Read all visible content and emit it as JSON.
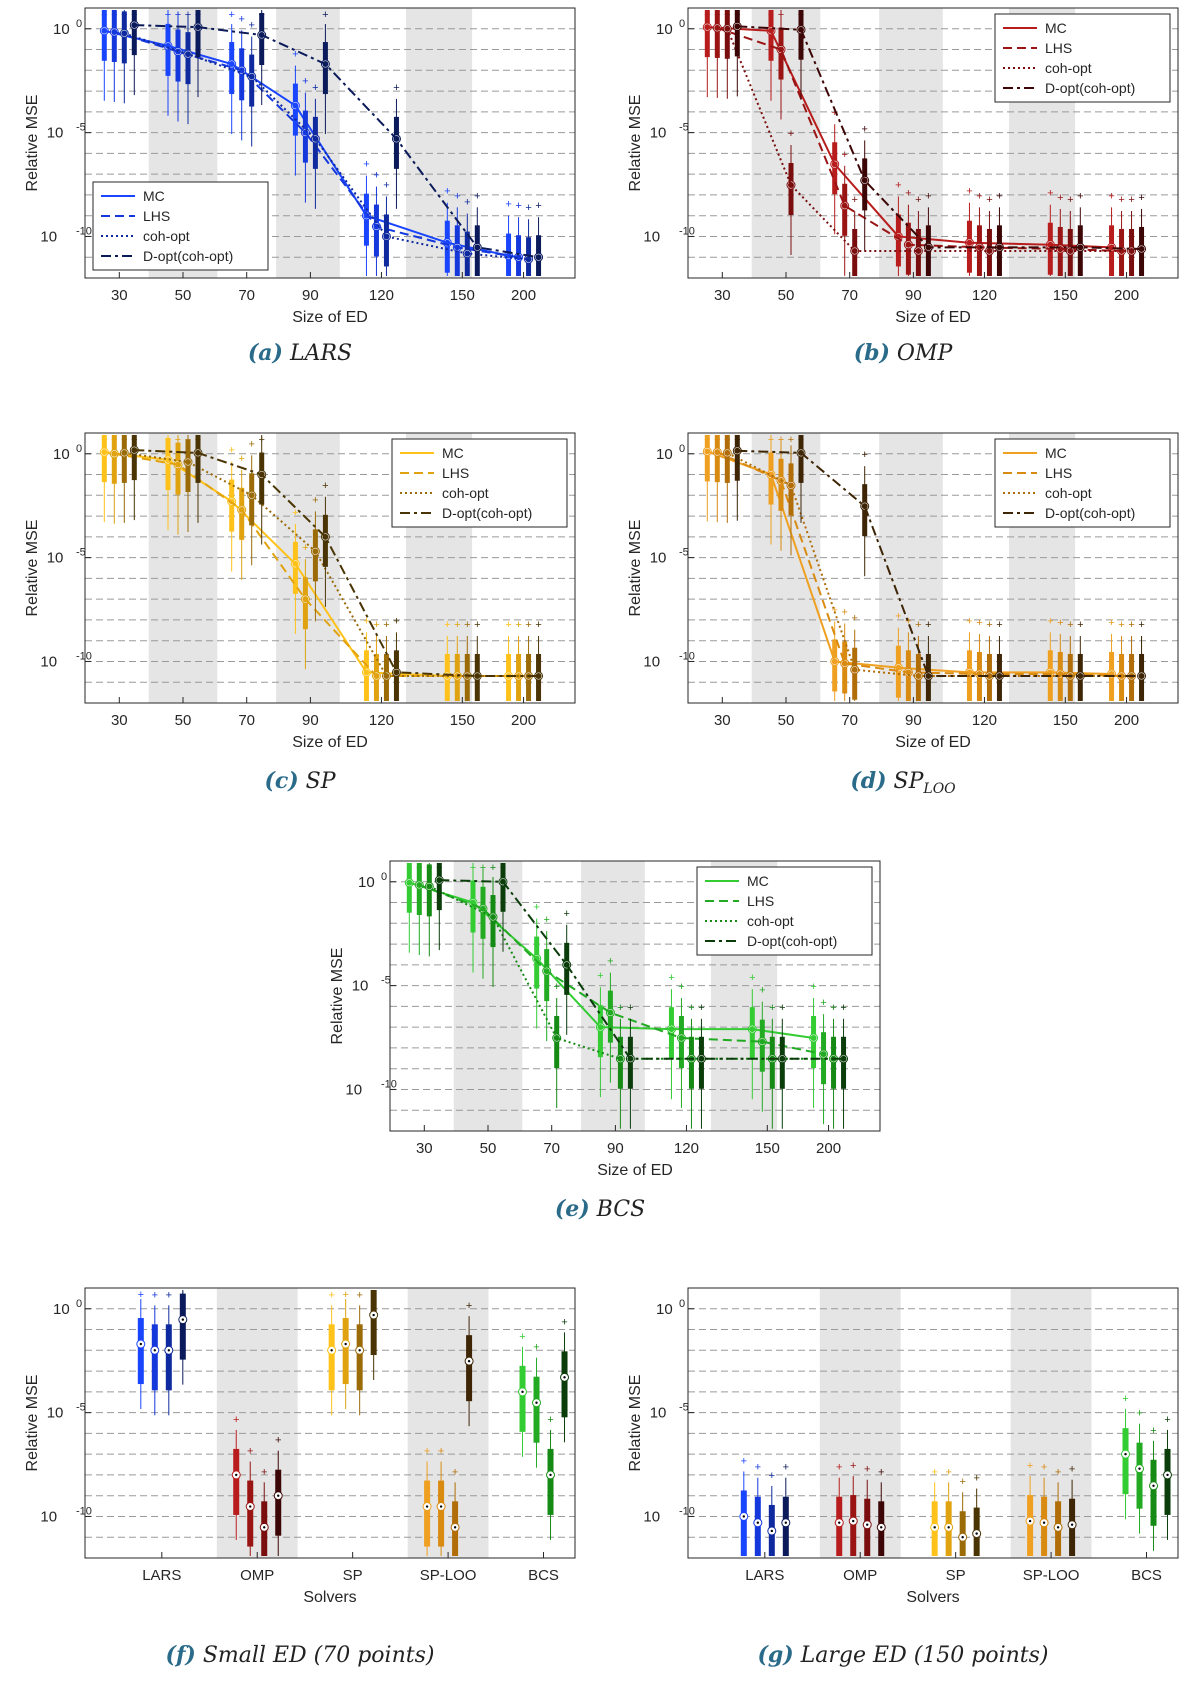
{
  "colors": {
    "LARS": [
      "#1a45ff",
      "#1538dd",
      "#0f2a9e",
      "#0b1a5a"
    ],
    "OMP": [
      "#b81c1c",
      "#9a1414",
      "#7a0e0e",
      "#3d0606"
    ],
    "SP": [
      "#ffc21a",
      "#e0a20e",
      "#9b6b08",
      "#4a3404"
    ],
    "SPLOO": [
      "#f0a020",
      "#d98a10",
      "#b06d08",
      "#3d2505"
    ],
    "BCS": [
      "#33cc33",
      "#22aa22",
      "#158a15",
      "#0b3d0b"
    ]
  },
  "captions": [
    {
      "label": "(a)",
      "text": "LARS"
    },
    {
      "label": "(b)",
      "text": "OMP"
    },
    {
      "label": "(c)",
      "text": "SP"
    },
    {
      "label": "(d)",
      "text": "SP",
      "sub": "LOO"
    },
    {
      "label": "(e)",
      "text": "BCS"
    },
    {
      "label": "(f)",
      "text": "Small ED (70 points)"
    },
    {
      "label": "(g)",
      "text": "Large ED (150 points)"
    }
  ],
  "chart_data": [
    {
      "type": "line",
      "id": "a",
      "solver": "LARS",
      "xlabel": "Size of ED",
      "ylabel": "Relative MSE",
      "yscale": "log",
      "ylim": [
        1e-12,
        10
      ],
      "xtick_labels": [
        "30",
        "50",
        "70",
        "90",
        "120",
        "150",
        "200"
      ],
      "ytick_labels": [
        "10^0",
        "10^-5",
        "10^-10"
      ],
      "legend": [
        "MC",
        "LHS",
        "coh-opt",
        "D-opt(coh-opt)"
      ],
      "legend_position": "bottom-left",
      "series": [
        {
          "name": "MC",
          "values": [
            0.8,
            0.15,
            0.02,
            0.0002,
            1e-09,
            5e-11,
            1.2e-11
          ]
        },
        {
          "name": "LHS",
          "values": [
            0.7,
            0.08,
            0.01,
            1e-05,
            3e-10,
            3e-11,
            1e-11
          ]
        },
        {
          "name": "coh-opt",
          "values": [
            0.6,
            0.06,
            0.005,
            5e-06,
            1e-10,
            1.5e-11,
            8e-12
          ]
        },
        {
          "name": "D-opt(coh-opt)",
          "values": [
            1.5,
            1.2,
            0.5,
            0.02,
            5e-06,
            3e-11,
            1e-11
          ]
        }
      ]
    },
    {
      "type": "line",
      "id": "b",
      "solver": "OMP",
      "xlabel": "Size of ED",
      "ylabel": "Relative MSE",
      "yscale": "log",
      "ylim": [
        1e-12,
        10
      ],
      "xtick_labels": [
        "30",
        "50",
        "70",
        "90",
        "120",
        "150",
        "200"
      ],
      "ytick_labels": [
        "10^0",
        "10^-5",
        "10^-10"
      ],
      "legend": [
        "MC",
        "LHS",
        "coh-opt",
        "D-opt(coh-opt)"
      ],
      "legend_position": "top-right",
      "series": [
        {
          "name": "MC",
          "values": [
            1.2,
            0.8,
            3e-07,
            1e-10,
            5e-11,
            4e-11,
            3e-11
          ]
        },
        {
          "name": "LHS",
          "values": [
            1.1,
            0.1,
            3e-09,
            4e-11,
            3e-11,
            2.5e-11,
            2e-11
          ]
        },
        {
          "name": "coh-opt",
          "values": [
            1.0,
            3e-08,
            2e-11,
            2e-11,
            2e-11,
            2e-11,
            2e-11
          ]
        },
        {
          "name": "D-opt(coh-opt)",
          "values": [
            1.3,
            0.9,
            5e-08,
            3e-11,
            3e-11,
            3e-11,
            2.5e-11
          ]
        }
      ]
    },
    {
      "type": "line",
      "id": "c",
      "solver": "SP",
      "xlabel": "Size of ED",
      "ylabel": "Relative MSE",
      "yscale": "log",
      "ylim": [
        1e-12,
        10
      ],
      "xtick_labels": [
        "30",
        "50",
        "70",
        "90",
        "120",
        "150",
        "200"
      ],
      "ytick_labels": [
        "10^0",
        "10^-5",
        "10^-10"
      ],
      "legend": [
        "MC",
        "LHS",
        "coh-opt",
        "D-opt(coh-opt)"
      ],
      "legend_position": "top-right",
      "series": [
        {
          "name": "MC",
          "values": [
            1.2,
            0.5,
            0.005,
            5e-06,
            3e-11,
            2e-11,
            2e-11
          ]
        },
        {
          "name": "LHS",
          "values": [
            1.0,
            0.3,
            0.002,
            1e-07,
            2e-11,
            2e-11,
            2e-11
          ]
        },
        {
          "name": "coh-opt",
          "values": [
            1.1,
            0.4,
            0.01,
            2e-05,
            2e-11,
            2e-11,
            2e-11
          ]
        },
        {
          "name": "D-opt(coh-opt)",
          "values": [
            1.5,
            1.1,
            0.1,
            0.0001,
            3e-11,
            2e-11,
            2e-11
          ]
        }
      ]
    },
    {
      "type": "line",
      "id": "d",
      "solver": "SP-LOO",
      "xlabel": "Size of ED",
      "ylabel": "Relative MSE",
      "yscale": "log",
      "ylim": [
        1e-12,
        10
      ],
      "xtick_labels": [
        "30",
        "50",
        "70",
        "90",
        "120",
        "150",
        "200"
      ],
      "ytick_labels": [
        "10^0",
        "10^-5",
        "10^-10"
      ],
      "legend": [
        "MC",
        "LHS",
        "coh-opt",
        "D-opt(coh-opt)"
      ],
      "legend_position": "top-right",
      "series": [
        {
          "name": "MC",
          "values": [
            1.3,
            0.1,
            1e-10,
            5e-11,
            3e-11,
            3e-11,
            2.5e-11
          ]
        },
        {
          "name": "LHS",
          "values": [
            1.2,
            0.05,
            8e-11,
            3e-11,
            2.5e-11,
            2.5e-11,
            2e-11
          ]
        },
        {
          "name": "coh-opt",
          "values": [
            1.1,
            0.03,
            4e-11,
            2e-11,
            2e-11,
            2e-11,
            2e-11
          ]
        },
        {
          "name": "D-opt(coh-opt)",
          "values": [
            1.4,
            1.1,
            0.003,
            2e-11,
            2e-11,
            2e-11,
            2e-11
          ]
        }
      ]
    },
    {
      "type": "line",
      "id": "e",
      "solver": "BCS",
      "xlabel": "Size of ED",
      "ylabel": "Relative MSE",
      "yscale": "log",
      "ylim": [
        1e-12,
        10
      ],
      "xtick_labels": [
        "30",
        "50",
        "70",
        "90",
        "120",
        "150",
        "200"
      ],
      "ytick_labels": [
        "10^0",
        "10^-5",
        "10^-10"
      ],
      "legend": [
        "MC",
        "LHS",
        "coh-opt",
        "D-opt(coh-opt)"
      ],
      "legend_position": "top-right",
      "series": [
        {
          "name": "MC",
          "values": [
            0.9,
            0.1,
            0.0002,
            1e-07,
            8e-08,
            8e-08,
            3e-08
          ]
        },
        {
          "name": "LHS",
          "values": [
            0.7,
            0.05,
            5e-05,
            5e-07,
            3e-08,
            2e-08,
            5e-09
          ]
        },
        {
          "name": "coh-opt",
          "values": [
            0.6,
            0.02,
            3e-08,
            3e-09,
            3e-09,
            3e-09,
            3e-09
          ]
        },
        {
          "name": "D-opt(coh-opt)",
          "values": [
            1.2,
            1.0,
            0.0001,
            3e-09,
            3e-09,
            3e-09,
            3e-09
          ]
        }
      ]
    },
    {
      "type": "box",
      "id": "f",
      "xlabel": "Solvers",
      "ylabel": "Relative MSE",
      "yscale": "log",
      "ylim": [
        1e-12,
        10
      ],
      "categories": [
        "LARS",
        "OMP",
        "SP",
        "SP-LOO",
        "BCS"
      ],
      "ytick_labels": [
        "10^0",
        "10^-5",
        "10^-10"
      ],
      "medians": [
        [
          0.02,
          0.01,
          0.01,
          0.3
        ],
        [
          1e-08,
          3e-10,
          3e-11,
          1e-09
        ],
        [
          0.01,
          0.02,
          0.01,
          0.5
        ],
        [
          3e-10,
          3e-10,
          3e-11,
          0.003
        ],
        [
          0.0001,
          3e-05,
          1e-08,
          0.0005
        ]
      ]
    },
    {
      "type": "box",
      "id": "g",
      "xlabel": "Solvers",
      "ylabel": "Relative MSE",
      "yscale": "log",
      "ylim": [
        1e-12,
        10
      ],
      "categories": [
        "LARS",
        "OMP",
        "SP",
        "SP-LOO",
        "BCS"
      ],
      "ytick_labels": [
        "10^0",
        "10^-5",
        "10^-10"
      ],
      "medians": [
        [
          1e-10,
          5e-11,
          2e-11,
          5e-11
        ],
        [
          5e-11,
          6e-11,
          4e-11,
          3e-11
        ],
        [
          3e-11,
          3e-11,
          1e-11,
          1.5e-11
        ],
        [
          6e-11,
          5e-11,
          3e-11,
          4e-11
        ],
        [
          1e-07,
          2e-08,
          3e-09,
          1e-08
        ]
      ]
    }
  ]
}
